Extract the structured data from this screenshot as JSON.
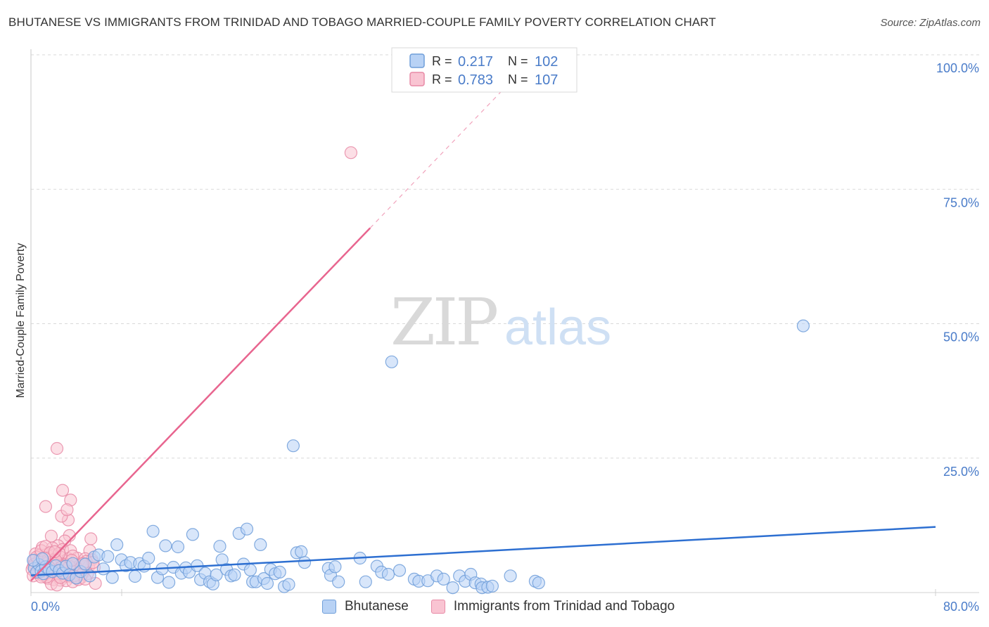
{
  "title": "BHUTANESE VS IMMIGRANTS FROM TRINIDAD AND TOBAGO MARRIED-COUPLE FAMILY POVERTY CORRELATION CHART",
  "source": "Source: ZipAtlas.com",
  "watermark": {
    "zip": "ZIP",
    "atlas": "atlas"
  },
  "colors": {
    "blue": "#6f9ed9",
    "blue_fill": "#b8d2f5",
    "blue_line": "#2d6fd1",
    "pink": "#e88aa6",
    "pink_fill": "#f9c4d2",
    "pink_line": "#e8658f",
    "tick": "#4a7cc9"
  },
  "legend": {
    "r_label": "R =",
    "n_label": "N =",
    "rows": [
      {
        "r": "0.217",
        "n": "102"
      },
      {
        "r": "0.783",
        "n": "107"
      }
    ]
  },
  "bottom_legend": {
    "series1": "Bhutanese",
    "series2": "Immigrants from Trinidad and Tobago"
  },
  "chart_data": {
    "type": "scatter",
    "title": "BHUTANESE VS IMMIGRANTS FROM TRINIDAD AND TOBAGO MARRIED-COUPLE FAMILY POVERTY CORRELATION CHART",
    "xlabel": "",
    "ylabel": "Married-Couple Family Poverty",
    "xlim": [
      0,
      80
    ],
    "ylim": [
      0,
      100
    ],
    "x_ticks": [
      "0.0%",
      "80.0%"
    ],
    "y_ticks": [
      {
        "value": 25,
        "label": "25.0%"
      },
      {
        "value": 50,
        "label": "50.0%"
      },
      {
        "value": 75,
        "label": "75.0%"
      },
      {
        "value": 100,
        "label": "100.0%"
      }
    ],
    "series": [
      {
        "name": "Bhutanese",
        "r": 0.217,
        "n": 102,
        "trend": {
          "x": [
            0,
            80
          ],
          "y": [
            3.2,
            12.2
          ]
        },
        "points": [
          [
            0.3,
            4.5
          ],
          [
            0.5,
            3.8
          ],
          [
            0.7,
            5.2
          ],
          [
            0.9,
            4.0
          ],
          [
            1.1,
            3.5
          ],
          [
            1.3,
            4.8
          ],
          [
            1.6,
            4.2
          ],
          [
            1.9,
            3.9
          ],
          [
            2.2,
            5.0
          ],
          [
            2.5,
            4.1
          ],
          [
            2.8,
            3.6
          ],
          [
            3.1,
            4.9
          ],
          [
            3.4,
            3.3
          ],
          [
            3.7,
            5.4
          ],
          [
            4.0,
            2.7
          ],
          [
            4.4,
            3.9
          ],
          [
            4.8,
            5.3
          ],
          [
            5.2,
            3.1
          ],
          [
            5.6,
            6.6
          ],
          [
            6.0,
            7.0
          ],
          [
            6.4,
            4.4
          ],
          [
            6.8,
            6.7
          ],
          [
            7.2,
            2.8
          ],
          [
            7.6,
            8.9
          ],
          [
            8.0,
            6.1
          ],
          [
            8.4,
            5.0
          ],
          [
            8.8,
            5.6
          ],
          [
            9.2,
            3.0
          ],
          [
            9.6,
            5.4
          ],
          [
            10.0,
            4.9
          ],
          [
            10.4,
            6.4
          ],
          [
            10.8,
            11.4
          ],
          [
            11.2,
            2.8
          ],
          [
            11.6,
            4.4
          ],
          [
            11.9,
            8.7
          ],
          [
            12.2,
            1.9
          ],
          [
            12.6,
            4.7
          ],
          [
            13.0,
            8.5
          ],
          [
            13.3,
            3.6
          ],
          [
            13.7,
            4.6
          ],
          [
            14.0,
            3.8
          ],
          [
            14.3,
            10.8
          ],
          [
            14.7,
            5.0
          ],
          [
            15.0,
            2.4
          ],
          [
            15.4,
            3.6
          ],
          [
            15.8,
            2.0
          ],
          [
            16.1,
            1.6
          ],
          [
            16.4,
            3.3
          ],
          [
            16.7,
            8.6
          ],
          [
            16.9,
            6.1
          ],
          [
            17.3,
            4.3
          ],
          [
            17.7,
            3.1
          ],
          [
            18.0,
            3.3
          ],
          [
            18.4,
            11.0
          ],
          [
            18.8,
            5.3
          ],
          [
            19.1,
            11.8
          ],
          [
            19.4,
            4.2
          ],
          [
            19.6,
            2.0
          ],
          [
            19.9,
            2.0
          ],
          [
            20.3,
            8.9
          ],
          [
            20.6,
            2.6
          ],
          [
            20.9,
            1.7
          ],
          [
            21.2,
            4.3
          ],
          [
            21.6,
            3.5
          ],
          [
            22.0,
            3.8
          ],
          [
            22.4,
            1.1
          ],
          [
            22.8,
            1.5
          ],
          [
            23.2,
            27.3
          ],
          [
            23.5,
            7.4
          ],
          [
            23.9,
            7.6
          ],
          [
            24.2,
            5.6
          ],
          [
            26.3,
            4.5
          ],
          [
            26.5,
            3.2
          ],
          [
            26.9,
            4.8
          ],
          [
            27.2,
            2.0
          ],
          [
            29.1,
            6.4
          ],
          [
            29.6,
            2.0
          ],
          [
            30.6,
            4.9
          ],
          [
            31.0,
            3.8
          ],
          [
            31.6,
            3.4
          ],
          [
            31.9,
            42.9
          ],
          [
            32.6,
            4.1
          ],
          [
            33.9,
            2.5
          ],
          [
            34.3,
            2.1
          ],
          [
            35.1,
            2.2
          ],
          [
            35.9,
            3.1
          ],
          [
            36.5,
            2.5
          ],
          [
            37.3,
            0.9
          ],
          [
            37.9,
            3.1
          ],
          [
            38.4,
            2.1
          ],
          [
            38.9,
            3.4
          ],
          [
            39.3,
            1.8
          ],
          [
            39.8,
            1.6
          ],
          [
            39.9,
            0.9
          ],
          [
            40.4,
            1.0
          ],
          [
            40.8,
            1.2
          ],
          [
            42.4,
            3.1
          ],
          [
            44.6,
            2.1
          ],
          [
            44.9,
            1.8
          ],
          [
            68.3,
            49.6
          ],
          [
            0.2,
            6.0
          ],
          [
            1.0,
            6.3
          ]
        ]
      },
      {
        "name": "Immigrants from Trinidad and Tobago",
        "r": 0.783,
        "n": 107,
        "trend": {
          "x": [
            0,
            30.0
          ],
          "y": [
            2.2,
            67.8
          ]
        },
        "trend_dashed": {
          "x": [
            30.0,
            41.6
          ],
          "y": [
            67.8,
            93.2
          ]
        },
        "points": [
          [
            28.3,
            81.8
          ],
          [
            2.3,
            26.8
          ],
          [
            2.8,
            19.0
          ],
          [
            1.3,
            16.0
          ],
          [
            3.5,
            17.2
          ],
          [
            3.3,
            13.5
          ],
          [
            2.7,
            14.2
          ],
          [
            3.2,
            15.4
          ],
          [
            1.8,
            10.5
          ],
          [
            3.4,
            10.6
          ],
          [
            5.3,
            10.0
          ],
          [
            3.0,
            9.6
          ],
          [
            2.4,
            8.7
          ],
          [
            1.0,
            8.4
          ],
          [
            1.9,
            8.3
          ],
          [
            2.8,
            8.0
          ],
          [
            3.5,
            7.8
          ],
          [
            5.2,
            7.8
          ],
          [
            0.4,
            7.2
          ],
          [
            0.8,
            7.0
          ],
          [
            1.4,
            7.1
          ],
          [
            2.0,
            6.9
          ],
          [
            2.6,
            6.6
          ],
          [
            3.3,
            6.3
          ],
          [
            4.1,
            6.4
          ],
          [
            4.8,
            6.3
          ],
          [
            5.4,
            6.1
          ],
          [
            0.3,
            6.0
          ],
          [
            0.7,
            5.9
          ],
          [
            1.1,
            5.8
          ],
          [
            1.5,
            5.6
          ],
          [
            1.9,
            5.7
          ],
          [
            2.3,
            5.5
          ],
          [
            2.7,
            5.4
          ],
          [
            3.1,
            5.3
          ],
          [
            3.5,
            5.2
          ],
          [
            3.9,
            5.1
          ],
          [
            4.3,
            5.0
          ],
          [
            4.7,
            4.9
          ],
          [
            5.1,
            4.8
          ],
          [
            5.6,
            4.7
          ],
          [
            0.2,
            4.8
          ],
          [
            0.6,
            4.6
          ],
          [
            1.0,
            4.5
          ],
          [
            1.4,
            4.4
          ],
          [
            1.8,
            4.3
          ],
          [
            2.2,
            4.2
          ],
          [
            2.6,
            4.1
          ],
          [
            3.0,
            4.0
          ],
          [
            3.4,
            3.9
          ],
          [
            3.8,
            3.8
          ],
          [
            4.2,
            3.7
          ],
          [
            4.6,
            3.6
          ],
          [
            5.0,
            3.5
          ],
          [
            0.4,
            3.7
          ],
          [
            0.8,
            3.6
          ],
          [
            1.2,
            3.5
          ],
          [
            1.6,
            3.4
          ],
          [
            2.0,
            3.3
          ],
          [
            2.4,
            3.2
          ],
          [
            2.8,
            3.1
          ],
          [
            3.2,
            3.0
          ],
          [
            3.6,
            2.9
          ],
          [
            4.0,
            2.8
          ],
          [
            4.4,
            2.7
          ],
          [
            1.5,
            2.6
          ],
          [
            2.0,
            2.4
          ],
          [
            2.6,
            2.3
          ],
          [
            3.1,
            2.2
          ],
          [
            3.7,
            2.0
          ],
          [
            1.8,
            1.6
          ],
          [
            2.3,
            1.4
          ],
          [
            5.7,
            1.7
          ],
          [
            0.3,
            5.3
          ],
          [
            0.5,
            6.6
          ],
          [
            0.9,
            7.8
          ],
          [
            1.3,
            8.6
          ],
          [
            1.7,
            7.4
          ],
          [
            2.1,
            6.2
          ],
          [
            2.5,
            7.3
          ],
          [
            2.9,
            5.0
          ],
          [
            3.3,
            4.6
          ],
          [
            3.7,
            6.8
          ],
          [
            4.1,
            4.4
          ],
          [
            4.5,
            3.4
          ],
          [
            4.9,
            5.8
          ],
          [
            5.5,
            5.6
          ],
          [
            0.6,
            4.1
          ],
          [
            1.0,
            3.2
          ],
          [
            1.4,
            2.9
          ],
          [
            1.8,
            5.1
          ],
          [
            2.2,
            6.0
          ],
          [
            2.6,
            2.8
          ],
          [
            3.0,
            3.6
          ],
          [
            3.4,
            4.9
          ],
          [
            3.8,
            3.1
          ],
          [
            4.2,
            2.4
          ],
          [
            4.6,
            5.4
          ],
          [
            0.1,
            4.3
          ],
          [
            0.2,
            3.1
          ],
          [
            0.9,
            2.9
          ],
          [
            1.6,
            4.7
          ],
          [
            2.1,
            7.6
          ],
          [
            2.7,
            4.8
          ],
          [
            3.6,
            6.0
          ],
          [
            4.8,
            2.5
          ],
          [
            1.2,
            6.4
          ]
        ]
      }
    ]
  }
}
